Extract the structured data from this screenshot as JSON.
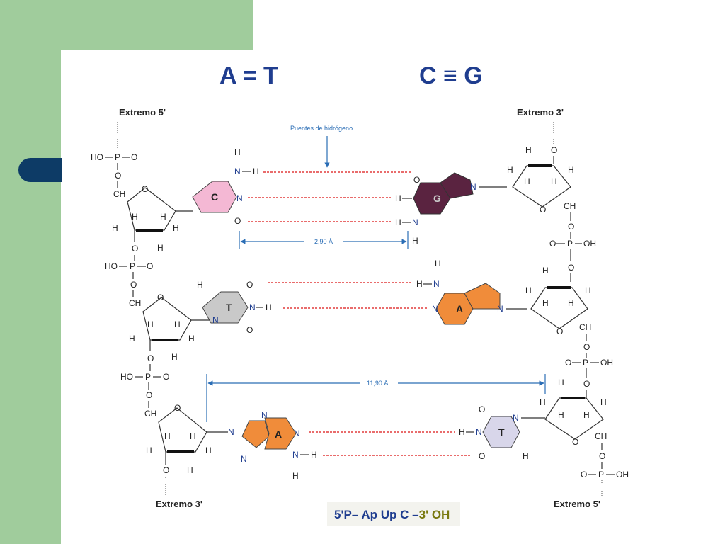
{
  "headings": {
    "at_pair": "A = T",
    "cg_pair": "C ≡ G"
  },
  "labels": {
    "five_prime_top": "Extremo 5'",
    "three_prime_top": "Extremo 3'",
    "three_prime_bottom": "Extremo 3'",
    "five_prime_bottom": "Extremo 5'",
    "hydrogen_bonds": "Puentes de hidrógeno",
    "distance_small": "2,90 Å",
    "distance_large": "11,90 Å"
  },
  "bases": {
    "c": "C",
    "g": "G",
    "t1": "T",
    "a1": "A",
    "a2": "A",
    "t2": "T"
  },
  "groups": {
    "phosphate_left": "HO",
    "phosphate_right": "OH",
    "ch2": "CH",
    "methyl": "H",
    "p": "P",
    "o": "O",
    "n": "N",
    "h": "H"
  },
  "formula": {
    "start": "5'P– Ap Up C –",
    "end": "3' OH"
  },
  "colors": {
    "heading": "#1f3d8f",
    "cytosine": "#f4b8d4",
    "guanine": "#5a2340",
    "thymine": "#c9c9c9",
    "adenine": "#f08c3a",
    "thymine2": "#d8d6ea",
    "hbond": "#e23b3b",
    "measure": "#2a6db5",
    "sidebar": "#a0cc9c",
    "pill": "#0d3b66"
  }
}
